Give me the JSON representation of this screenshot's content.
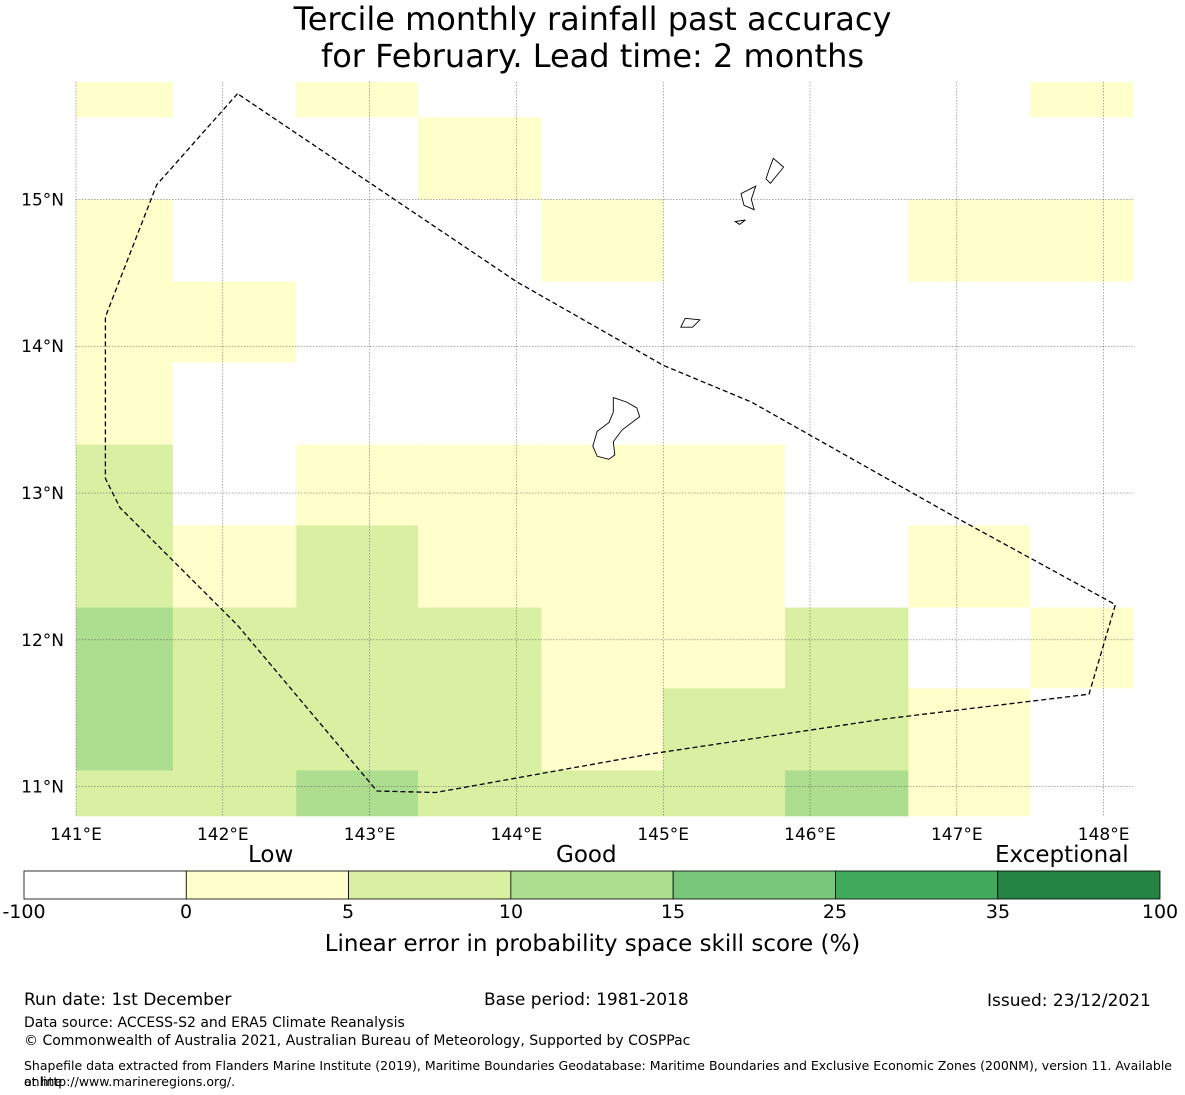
{
  "title": {
    "line1": "Tercile monthly rainfall past accuracy",
    "line2": "for February. Lead time: 2 months"
  },
  "map": {
    "lon_range": [
      141.0,
      148.2
    ],
    "lat_range": [
      10.8,
      15.8
    ],
    "lat_ticks": [
      {
        "value": 15,
        "label": "15°N"
      },
      {
        "value": 14,
        "label": "14°N"
      },
      {
        "value": 13,
        "label": "13°N"
      },
      {
        "value": 12,
        "label": "12°N"
      },
      {
        "value": 11,
        "label": "11°N"
      }
    ],
    "lon_ticks": [
      {
        "value": 141,
        "label": "141°E"
      },
      {
        "value": 142,
        "label": "142°E"
      },
      {
        "value": 143,
        "label": "143°E"
      },
      {
        "value": 144,
        "label": "144°E"
      },
      {
        "value": 145,
        "label": "145°E"
      },
      {
        "value": 146,
        "label": "146°E"
      },
      {
        "value": 147,
        "label": "147°E"
      },
      {
        "value": 148,
        "label": "148°E"
      }
    ],
    "grid_lon_edges": [
      141.0,
      141.66,
      142.5,
      143.33,
      144.17,
      145.0,
      145.83,
      146.67,
      147.5,
      148.2
    ],
    "grid_lat_edges": [
      15.8,
      15.56,
      15.0,
      14.44,
      13.89,
      13.33,
      12.78,
      12.22,
      11.67,
      11.11,
      10.8
    ],
    "skill_cells": [
      [
        "low",
        "none",
        "low",
        "none",
        "none",
        "none",
        "none",
        "none",
        "low"
      ],
      [
        "none",
        "none",
        "none",
        "low",
        "none",
        "none",
        "none",
        "none",
        "none"
      ],
      [
        "low",
        "none",
        "none",
        "none",
        "low",
        "none",
        "none",
        "low",
        "low"
      ],
      [
        "low",
        "low",
        "none",
        "none",
        "none",
        "none",
        "none",
        "none",
        "none"
      ],
      [
        "low",
        "none",
        "none",
        "none",
        "none",
        "none",
        "none",
        "none",
        "none"
      ],
      [
        "good1",
        "none",
        "low",
        "low",
        "low",
        "low",
        "none",
        "none",
        "none"
      ],
      [
        "good1",
        "low",
        "good1",
        "low",
        "low",
        "low",
        "none",
        "low",
        "none"
      ],
      [
        "good2",
        "good1",
        "good1",
        "good1",
        "low",
        "low",
        "good1",
        "none",
        "low"
      ],
      [
        "good2",
        "good1",
        "good1",
        "good1",
        "low",
        "good1",
        "good1",
        "low",
        "none"
      ],
      [
        "good1",
        "good1",
        "good2",
        "good1",
        "good1",
        "good1",
        "good2",
        "low",
        "none"
      ]
    ],
    "eez_boundary": [
      [
        142.1,
        15.72
      ],
      [
        141.55,
        15.1
      ],
      [
        141.2,
        14.2
      ],
      [
        141.2,
        13.1
      ],
      [
        141.3,
        12.9
      ],
      [
        142.1,
        12.1
      ],
      [
        143.05,
        10.97
      ],
      [
        143.45,
        10.96
      ],
      [
        144.9,
        11.22
      ],
      [
        146.5,
        11.46
      ],
      [
        147.9,
        11.63
      ],
      [
        148.08,
        12.24
      ],
      [
        147.0,
        12.83
      ],
      [
        145.6,
        13.62
      ],
      [
        145.0,
        13.87
      ],
      [
        144.0,
        14.44
      ],
      [
        142.1,
        15.72
      ]
    ],
    "islands": [
      [
        [
          144.66,
          13.65
        ],
        [
          144.75,
          13.62
        ],
        [
          144.82,
          13.58
        ],
        [
          144.84,
          13.52
        ],
        [
          144.72,
          13.43
        ],
        [
          144.66,
          13.35
        ],
        [
          144.67,
          13.26
        ],
        [
          144.63,
          13.23
        ],
        [
          144.55,
          13.25
        ],
        [
          144.52,
          13.32
        ],
        [
          144.55,
          13.42
        ],
        [
          144.63,
          13.48
        ],
        [
          144.66,
          13.55
        ]
      ],
      [
        [
          145.75,
          15.28
        ],
        [
          145.82,
          15.22
        ],
        [
          145.73,
          15.11
        ],
        [
          145.7,
          15.14
        ],
        [
          145.72,
          15.2
        ]
      ],
      [
        [
          145.63,
          15.09
        ],
        [
          145.6,
          15.0
        ],
        [
          145.62,
          14.93
        ],
        [
          145.55,
          14.96
        ],
        [
          145.53,
          15.04
        ]
      ],
      [
        [
          145.25,
          14.18
        ],
        [
          145.15,
          14.19
        ],
        [
          145.12,
          14.13
        ],
        [
          145.2,
          14.13
        ]
      ],
      [
        [
          145.56,
          14.86
        ],
        [
          145.52,
          14.83
        ],
        [
          145.49,
          14.85
        ]
      ]
    ]
  },
  "colorbar": {
    "categories": {
      "low": "Low",
      "good": "Good",
      "exceptional": "Exceptional"
    },
    "bins": [
      {
        "from": -100,
        "to": 0,
        "color": "#ffffff"
      },
      {
        "from": 0,
        "to": 5,
        "color": "#ffffcc"
      },
      {
        "from": 5,
        "to": 10,
        "color": "#d9f0a3"
      },
      {
        "from": 10,
        "to": 15,
        "color": "#addd8e"
      },
      {
        "from": 15,
        "to": 25,
        "color": "#78c679"
      },
      {
        "from": 25,
        "to": 35,
        "color": "#41ab5d"
      },
      {
        "from": 35,
        "to": 100,
        "color": "#238443"
      }
    ],
    "ticks": [
      "-100",
      "0",
      "5",
      "10",
      "15",
      "25",
      "35",
      "100"
    ],
    "label": "Linear error in probability space skill score (%)"
  },
  "legend_colors": {
    "none": "#ffffff",
    "low": "#ffffcc",
    "good1": "#d9f0a3",
    "good2": "#addd8e"
  },
  "footer": {
    "run_date": "Run date: 1st December",
    "base_period": "Base period: 1981-2018",
    "issued": "Issued: 23/12/2021",
    "data_source": "Data source: ACCESS-S2 and ERA5 Climate Reanalysis",
    "copyright": "© Commonwealth of Australia 2021, Australian Bureau of Meteorology, Supported by COSPPac",
    "shapefile_line1": "Shapefile data extracted from Flanders Marine Institute (2019), Maritime Boundaries Geodatabase: Maritime Boundaries and Exclusive Economic Zones (200NM), version 11. Available online",
    "shapefile_line2": "at http://www.marineregions.org/."
  }
}
